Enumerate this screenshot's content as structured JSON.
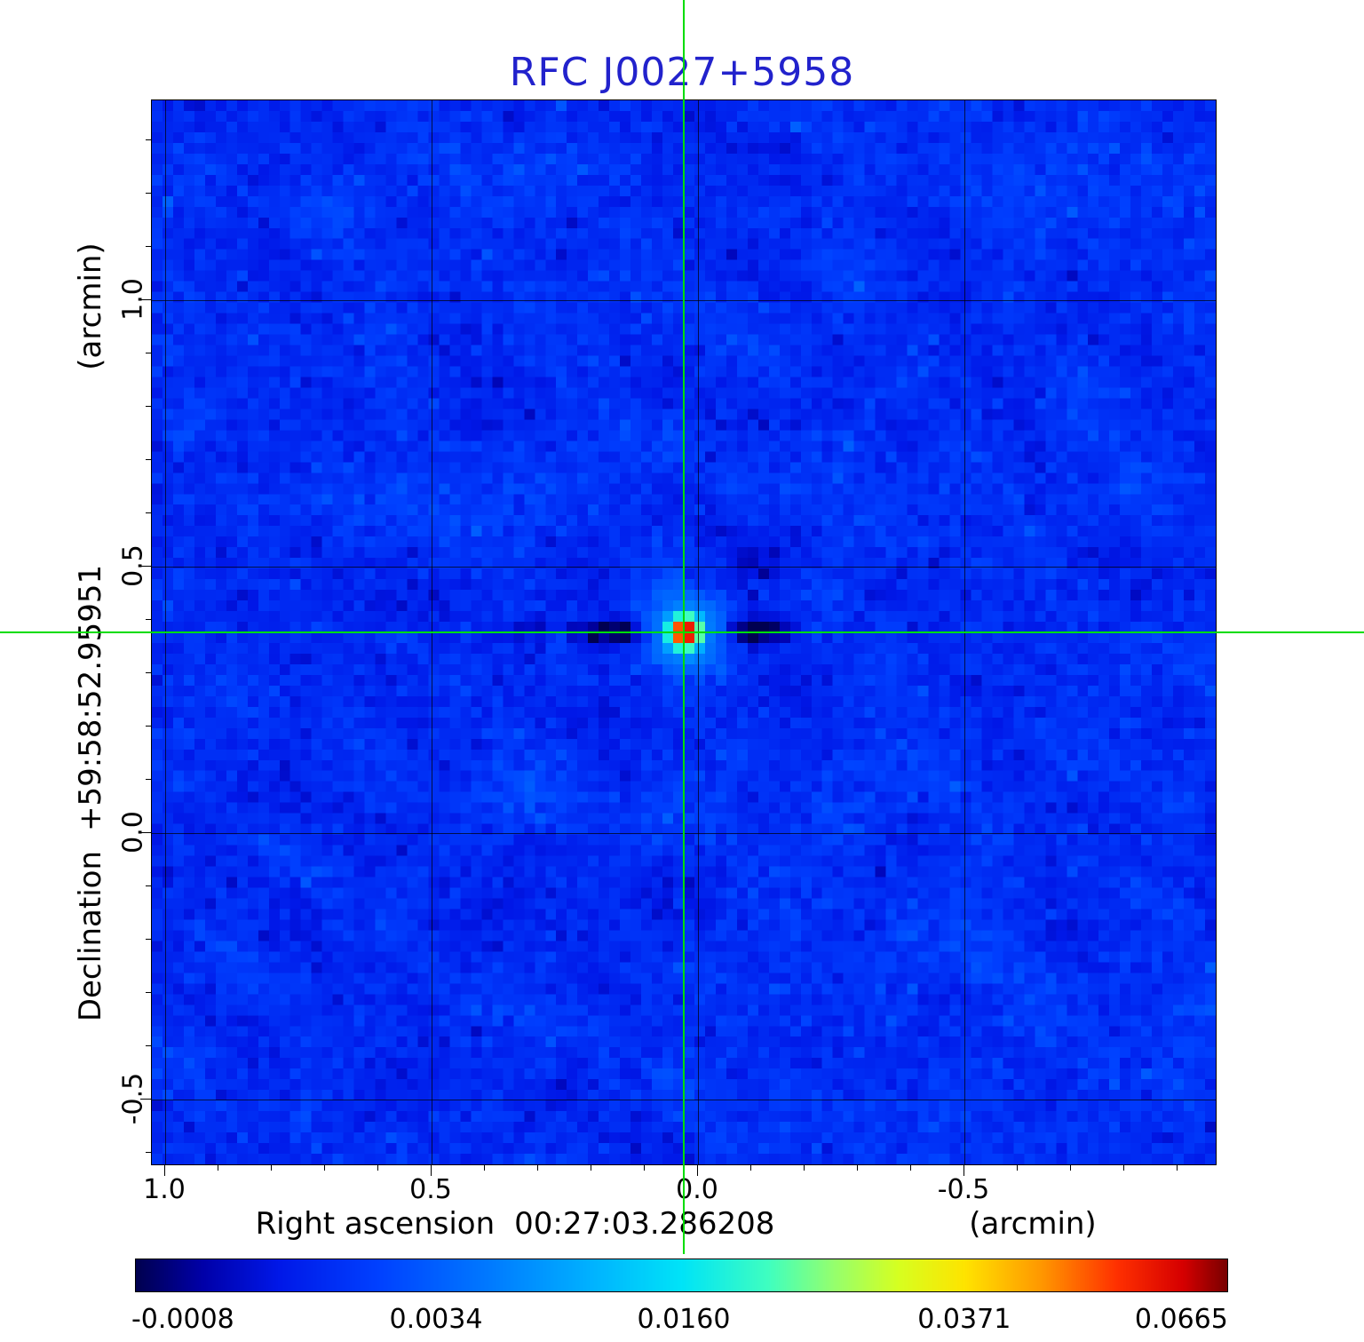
{
  "title": "RFC J0027+5958",
  "title_color": "#2222cc",
  "axes": {
    "x_label": "Right ascension",
    "x_coord_value": "00:27:03.286208",
    "x_unit": "(arcmin)",
    "y_label": "Declination",
    "y_coord_value": "+59:58:52.95951",
    "y_unit": "(arcmin)"
  },
  "chart_data": {
    "type": "heatmap",
    "title": "RFC J0027+5958",
    "xlabel": "Right ascension 00:27:03.286208 (arcmin)",
    "ylabel": "Declination +59:58:52.95951 (arcmin)",
    "x_range": [
      1.025,
      -0.975
    ],
    "y_range": [
      1.375,
      -0.625
    ],
    "x_ticks": [
      1.0,
      0.5,
      0.0,
      -0.5
    ],
    "y_ticks": [
      1.0,
      0.5,
      0.0,
      -0.5
    ],
    "grid": true,
    "legend": "none",
    "crosshair": {
      "x": 0.025,
      "y": 0.375,
      "color": "#00dd00"
    },
    "source": {
      "peak": 0.0665,
      "ra_offset_arcmin": 0.025,
      "dec_offset_arcmin": 0.375
    },
    "colorbar": {
      "ticks": [
        -0.0008,
        0.0034,
        0.016,
        0.0371,
        0.0665
      ],
      "colormap_stops": [
        [
          0.0,
          "#000050"
        ],
        [
          0.06,
          "#0000a8"
        ],
        [
          0.13,
          "#0018e8"
        ],
        [
          0.22,
          "#0040ff"
        ],
        [
          0.32,
          "#0078ff"
        ],
        [
          0.42,
          "#00b4ff"
        ],
        [
          0.5,
          "#00e4f8"
        ],
        [
          0.58,
          "#40ffc0"
        ],
        [
          0.64,
          "#96ff6e"
        ],
        [
          0.7,
          "#d8ff20"
        ],
        [
          0.76,
          "#ffe400"
        ],
        [
          0.83,
          "#ff9800"
        ],
        [
          0.9,
          "#ff3000"
        ],
        [
          0.96,
          "#d60000"
        ],
        [
          1.0,
          "#7a0000"
        ]
      ],
      "value_anchor_fractions": [
        [
          -0.0008,
          0.043
        ],
        [
          0.0034,
          0.275
        ],
        [
          0.016,
          0.502
        ],
        [
          0.0371,
          0.759
        ],
        [
          0.0665,
          0.958
        ]
      ]
    },
    "render": {
      "grid_cells": 100,
      "seed": 27595812,
      "background_mean": 0.0016,
      "background_rms": 0.00045,
      "source_cell": [
        49.6,
        49.5
      ]
    }
  }
}
